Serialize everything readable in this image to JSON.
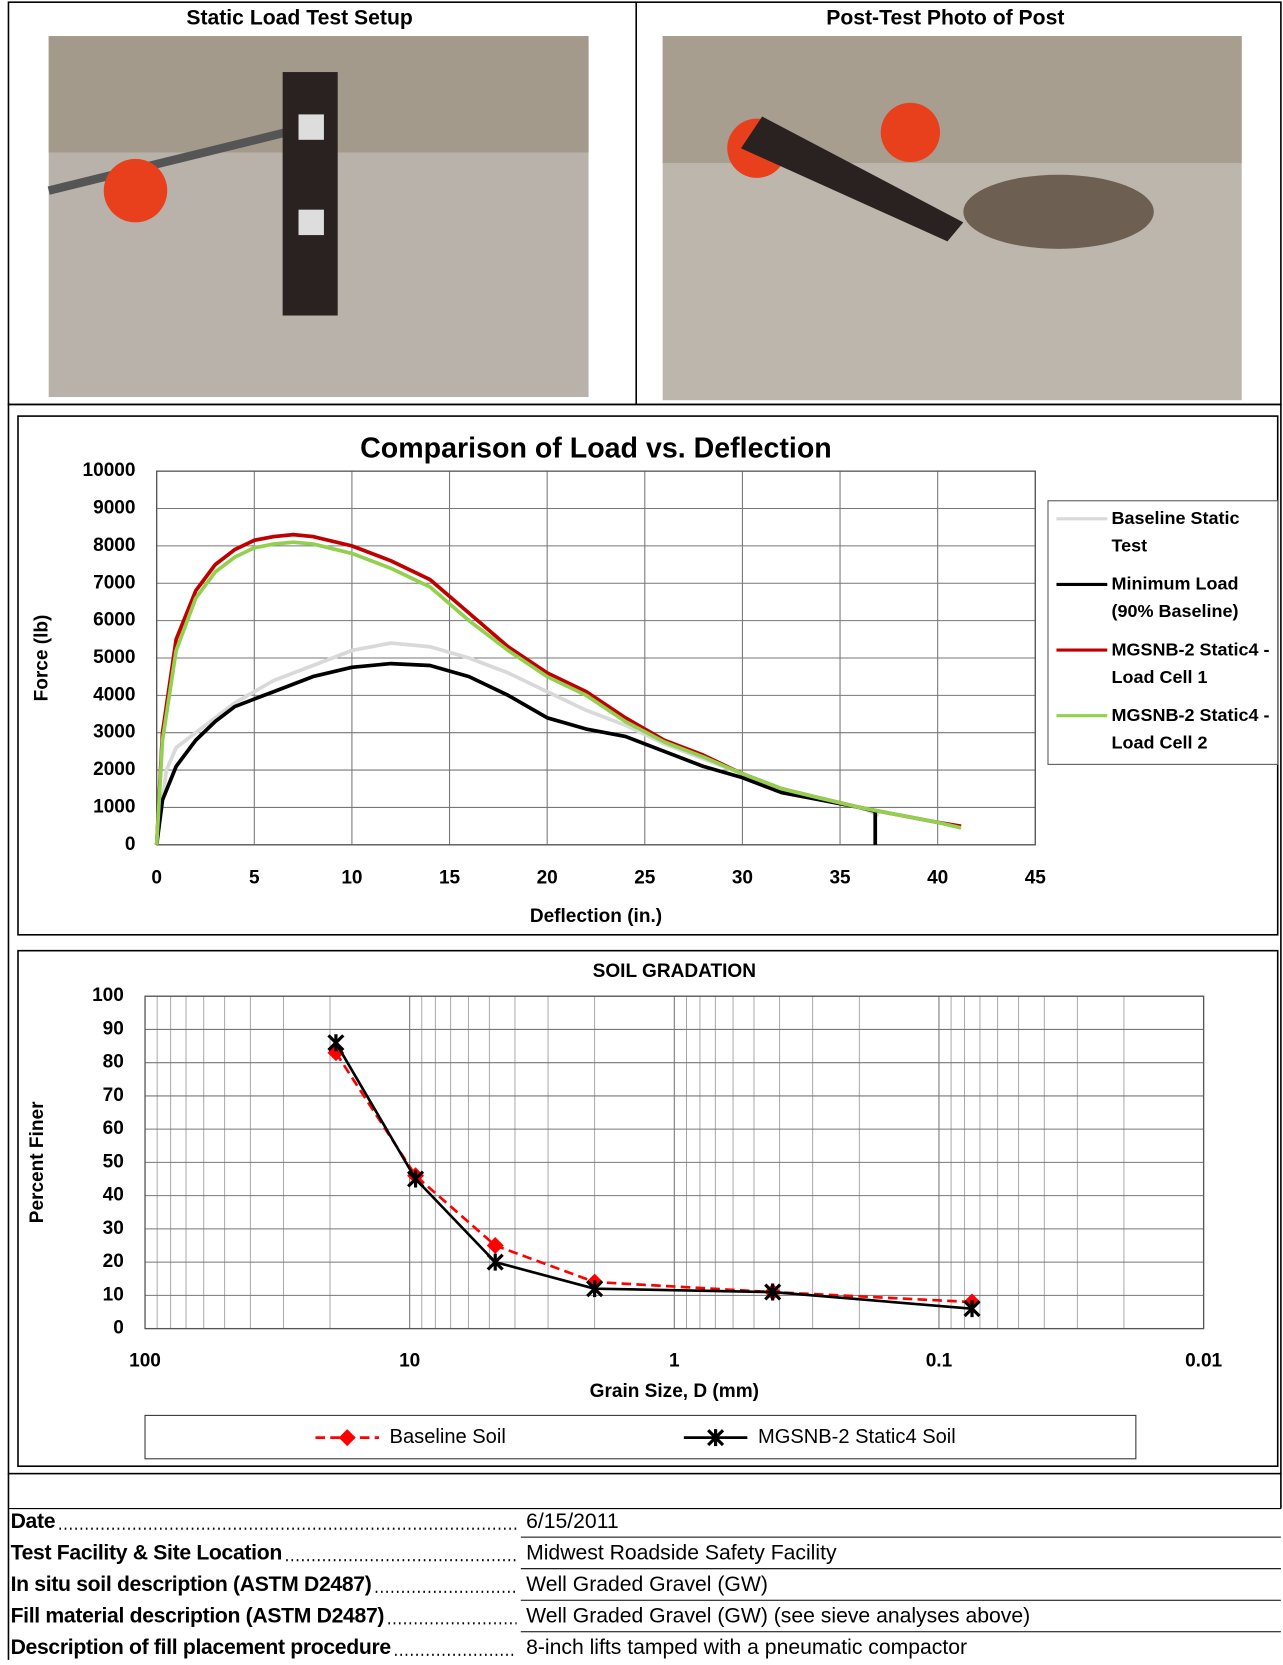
{
  "photos": [
    {
      "title": "Static Load Test Setup"
    },
    {
      "title": "Post-Test Photo of Post"
    }
  ],
  "chart_data": [
    {
      "type": "line",
      "title": "Comparison of Load vs. Deflection",
      "x_label": "Deflection (in.)",
      "y_label": "Force (lb)",
      "xlim": [
        0,
        45
      ],
      "xticks": [
        0,
        5,
        10,
        15,
        20,
        25,
        30,
        35,
        40,
        45
      ],
      "ylim": [
        0,
        10000
      ],
      "yticks": [
        0,
        1000,
        2000,
        3000,
        4000,
        5000,
        6000,
        7000,
        8000,
        9000,
        10000
      ],
      "grid": true,
      "legend": "right",
      "series": [
        {
          "name": "Baseline Static Test",
          "color": "#d9d9d9",
          "x": [
            0,
            0.5,
            1,
            2,
            3,
            4,
            5,
            6,
            8,
            10,
            12,
            14,
            16,
            18,
            20,
            22,
            24,
            26,
            28,
            30,
            32,
            34,
            36,
            37
          ],
          "values": [
            0,
            2000,
            2600,
            3000,
            3400,
            3800,
            4100,
            4400,
            4800,
            5200,
            5400,
            5300,
            5000,
            4600,
            4100,
            3600,
            3200,
            2700,
            2300,
            1900,
            1500,
            1200,
            1000,
            800
          ]
        },
        {
          "name": "Minimum Load (90% Baseline)",
          "color": "#000000",
          "x": [
            0,
            0.3,
            1,
            2,
            3,
            4,
            5,
            6,
            8,
            10,
            12,
            14,
            16,
            18,
            20,
            22,
            24,
            26,
            28,
            30,
            32,
            34,
            36,
            36.8,
            36.8
          ],
          "values": [
            0,
            1200,
            2100,
            2800,
            3300,
            3700,
            3900,
            4100,
            4500,
            4750,
            4850,
            4800,
            4500,
            4000,
            3400,
            3100,
            2900,
            2500,
            2100,
            1800,
            1400,
            1200,
            1000,
            900,
            0
          ]
        },
        {
          "name": "MGSNB-2 Static4 - Load Cell 1",
          "color": "#c00000",
          "x": [
            0,
            0.3,
            1,
            2,
            3,
            4,
            5,
            6,
            7,
            8,
            10,
            12,
            14,
            16,
            18,
            20,
            22,
            24,
            26,
            28,
            30,
            32,
            34,
            36,
            38,
            40,
            41.2
          ],
          "values": [
            0,
            3000,
            5500,
            6800,
            7500,
            7900,
            8150,
            8250,
            8300,
            8250,
            8000,
            7600,
            7100,
            6200,
            5300,
            4600,
            4100,
            3400,
            2800,
            2400,
            1900,
            1500,
            1250,
            1000,
            800,
            600,
            500
          ]
        },
        {
          "name": "MGSNB-2 Static4 - Load Cell 2",
          "color": "#92d050",
          "x": [
            0,
            0.3,
            1,
            2,
            3,
            4,
            5,
            6,
            7,
            8,
            10,
            12,
            14,
            16,
            18,
            20,
            22,
            24,
            26,
            28,
            30,
            32,
            34,
            36,
            38,
            40,
            41.2
          ],
          "values": [
            0,
            2800,
            5200,
            6600,
            7300,
            7700,
            7950,
            8050,
            8100,
            8050,
            7800,
            7400,
            6900,
            6000,
            5200,
            4500,
            4000,
            3300,
            2750,
            2350,
            1900,
            1500,
            1250,
            1000,
            800,
            600,
            450
          ]
        }
      ]
    },
    {
      "type": "line",
      "title": "SOIL GRADATION",
      "x_label": "Grain Size, D (mm)",
      "y_label": "Percent Finer",
      "x_log": true,
      "xlim": [
        100,
        0.01
      ],
      "xticks": [
        100,
        10,
        1,
        0.1,
        0.01
      ],
      "ylim": [
        0,
        100
      ],
      "yticks": [
        0,
        10,
        20,
        30,
        40,
        50,
        60,
        70,
        80,
        90,
        100
      ],
      "grid": true,
      "legend": "bottom",
      "series": [
        {
          "name": "Baseline Soil",
          "color": "#ff0000",
          "dashed": true,
          "marker": "diamond",
          "x": [
            19,
            9.5,
            4.75,
            2,
            0.425,
            0.075
          ],
          "values": [
            83,
            46,
            25,
            14,
            11,
            8
          ]
        },
        {
          "name": "MGSNB-2 Static4 Soil",
          "color": "#000000",
          "dashed": false,
          "marker": "star",
          "x": [
            19,
            9.5,
            4.75,
            2,
            0.425,
            0.075
          ],
          "values": [
            86,
            45,
            20,
            12,
            11,
            6
          ]
        }
      ]
    }
  ],
  "table": {
    "rows": [
      [
        "Date",
        "6/15/2011"
      ],
      [
        "Test Facility & Site Location",
        "Midwest Roadside Safety Facility"
      ],
      [
        "In situ soil description (ASTM D2487)",
        "Well Graded Gravel (GW)"
      ],
      [
        "Fill material description (ASTM D2487)",
        "Well Graded Gravel (GW) (see sieve analyses above)"
      ],
      [
        "Description of fill placement procedure",
        "8-inch lifts tamped with a pneumatic compactor"
      ]
    ]
  }
}
